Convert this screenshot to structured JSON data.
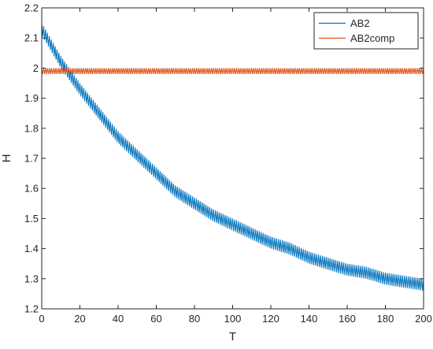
{
  "chart_data": {
    "type": "line",
    "xlabel": "T",
    "ylabel": "H",
    "xlim": [
      0,
      200
    ],
    "ylim": [
      1.2,
      2.2
    ],
    "xticks": [
      0,
      20,
      40,
      60,
      80,
      100,
      120,
      140,
      160,
      180,
      200
    ],
    "yticks": [
      1.2,
      1.3,
      1.4,
      1.5,
      1.6,
      1.7,
      1.8,
      1.9,
      2.0,
      2.1,
      2.2
    ],
    "xtick_labels": [
      "0",
      "20",
      "40",
      "60",
      "80",
      "100",
      "120",
      "140",
      "160",
      "180",
      "200"
    ],
    "ytick_labels": [
      "1.2",
      "1.3",
      "1.4",
      "1.5",
      "1.6",
      "1.7",
      "1.8",
      "1.9",
      "2",
      "2.1",
      "2.2"
    ],
    "grid": false,
    "legend_position": "top-right",
    "series": [
      {
        "name": "AB2",
        "color": "#0072BD",
        "x": [
          0,
          10,
          20,
          30,
          40,
          50,
          60,
          70,
          80,
          90,
          100,
          110,
          120,
          130,
          140,
          150,
          160,
          170,
          180,
          190,
          200
        ],
        "y": [
          2.13,
          2.02,
          1.93,
          1.85,
          1.77,
          1.71,
          1.65,
          1.59,
          1.55,
          1.51,
          1.48,
          1.45,
          1.42,
          1.4,
          1.37,
          1.35,
          1.33,
          1.32,
          1.3,
          1.29,
          1.28
        ],
        "oscillation_amplitude": 0.02
      },
      {
        "name": "AB2comp",
        "color": "#D95319",
        "x": [
          0,
          200
        ],
        "y": [
          1.99,
          1.99
        ],
        "oscillation_amplitude": 0.01
      }
    ]
  }
}
